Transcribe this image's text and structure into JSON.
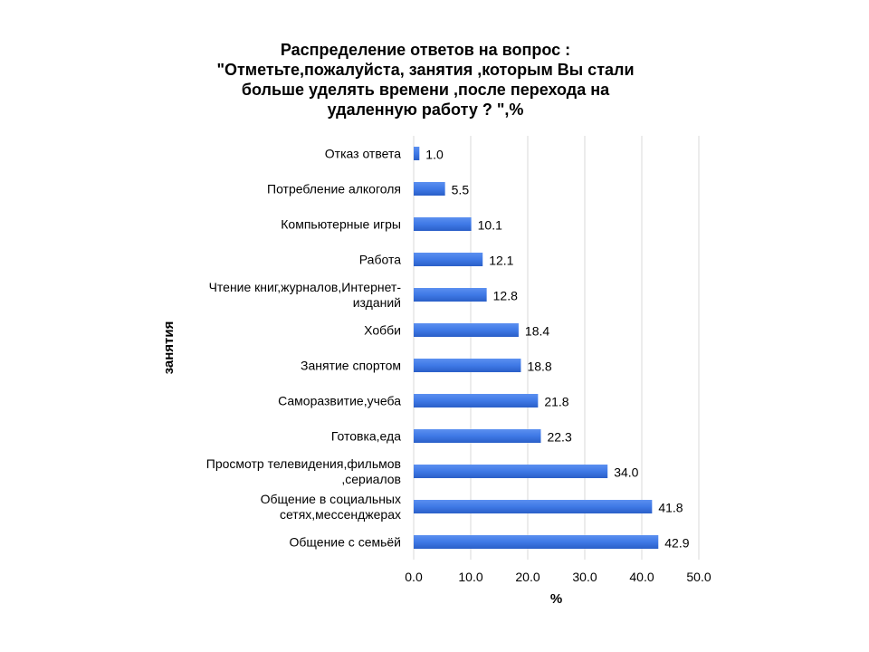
{
  "chart_data": {
    "type": "bar",
    "orientation": "horizontal",
    "title_lines": [
      "Распределение ответов на вопрос :",
      "\"Отметьте,пожалуйста, занятия ,которым Вы стали",
      "больше уделять времени ,после перехода на",
      "удаленную работу ? \",%"
    ],
    "categories": [
      [
        "Отказ ответа"
      ],
      [
        "Потребление  алкоголя"
      ],
      [
        "Компьютерные игры"
      ],
      [
        "Работа"
      ],
      [
        "Чтение  книг,журналов,Интернет-",
        "изданий"
      ],
      [
        "Хобби"
      ],
      [
        "Занятие  спортом"
      ],
      [
        "Саморазвитие,учеба"
      ],
      [
        "Готовка,еда"
      ],
      [
        "Просмотр телевидения,фильмов",
        ",сериалов"
      ],
      [
        "Общение  в социальных",
        "сетях,мессенджерах"
      ],
      [
        "Общение  с семьёй"
      ]
    ],
    "values": [
      1.0,
      5.5,
      10.1,
      12.1,
      12.8,
      18.4,
      18.8,
      21.8,
      22.3,
      34.0,
      41.8,
      42.9
    ],
    "value_labels": [
      "1.0",
      "5.5",
      "10.1",
      "12.1",
      "12.8",
      "18.4",
      "18.8",
      "21.8",
      "22.3",
      "34.0",
      "41.8",
      "42.9"
    ],
    "xlabel": "%",
    "ylabel": "занятия",
    "xlim": [
      0,
      50
    ],
    "xticks": [
      "0.0",
      "10.0",
      "20.0",
      "30.0",
      "40.0",
      "50.0"
    ],
    "grid": "vertical",
    "legend": "none",
    "bar_color": "#3f79e6",
    "bar_color_dark": "#2a5fc8",
    "grid_color": "#d9d9d9"
  }
}
